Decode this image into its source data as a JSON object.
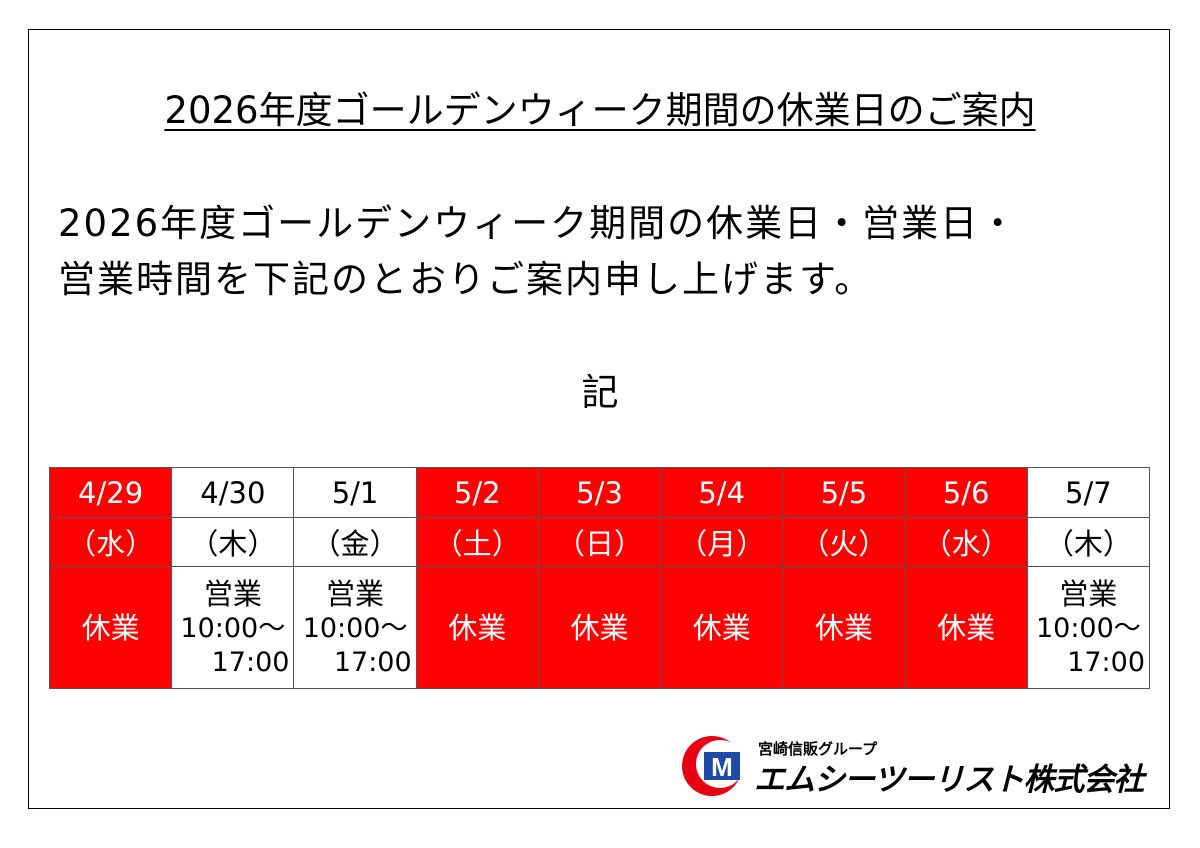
{
  "title": "2026年度ゴールデンウィーク期間の休業日のご案内",
  "intro": [
    "2026年度ゴールデンウィーク期間の休業日・営業日・",
    "営業時間を下記のとおりご案内申し上げます。"
  ],
  "ki": "記",
  "colors": {
    "closed": "#ff0000",
    "logo_red": "#e60012",
    "logo_blue": "#1e4aa8"
  },
  "days": [
    {
      "date": "4/29",
      "weekday": "（水）",
      "status": "休業",
      "closed": true
    },
    {
      "date": "4/30",
      "weekday": "（木）",
      "status": "営業",
      "hours_from": "10:00～",
      "hours_to": "17:00",
      "closed": false
    },
    {
      "date": "5/1",
      "weekday": "（金）",
      "status": "営業",
      "hours_from": "10:00～",
      "hours_to": "17:00",
      "closed": false
    },
    {
      "date": "5/2",
      "weekday": "（土）",
      "status": "休業",
      "closed": true
    },
    {
      "date": "5/3",
      "weekday": "（日）",
      "status": "休業",
      "closed": true
    },
    {
      "date": "5/4",
      "weekday": "（月）",
      "status": "休業",
      "closed": true
    },
    {
      "date": "5/5",
      "weekday": "（火）",
      "status": "休業",
      "closed": true
    },
    {
      "date": "5/6",
      "weekday": "（水）",
      "status": "休業",
      "closed": true
    },
    {
      "date": "5/7",
      "weekday": "（木）",
      "status": "営業",
      "hours_from": "10:00～",
      "hours_to": "17:00",
      "closed": false
    }
  ],
  "logo": {
    "group": "宮崎信販グループ",
    "company": "エムシーツーリスト株式会社",
    "mark": "M"
  }
}
